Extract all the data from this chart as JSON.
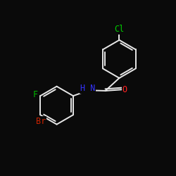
{
  "bg_color": "#0a0a0a",
  "bond_color": "#e8e8e8",
  "atom_colors": {
    "Cl": "#00cc00",
    "Br": "#cc2200",
    "F": "#00bb00",
    "N": "#3333ff",
    "O": "#ff2222",
    "C": "#e8e8e8"
  },
  "bond_width": 1.4,
  "font_size": 8.5,
  "dpi": 100,
  "figsize": [
    2.5,
    2.5
  ],
  "xlim": [
    -3.8,
    3.8
  ],
  "ylim": [
    -3.8,
    3.2
  ]
}
